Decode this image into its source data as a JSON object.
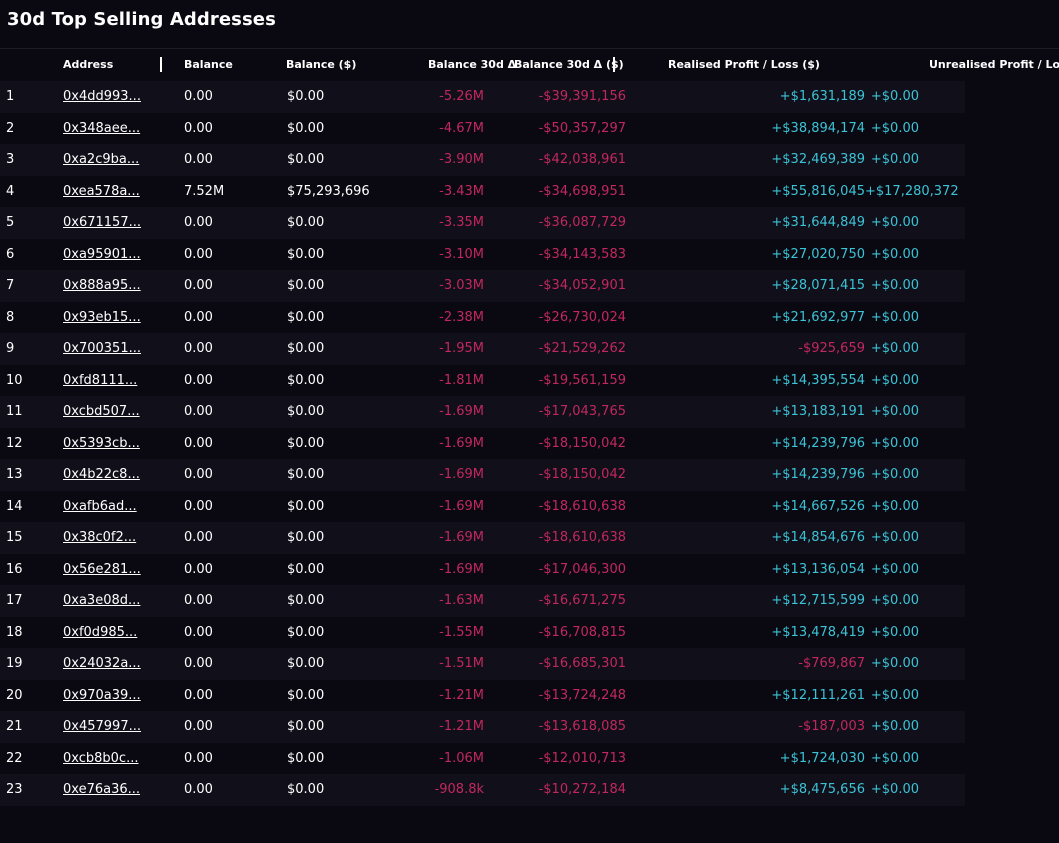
{
  "title": "30d Top Selling Addresses",
  "columns": {
    "address": "Address",
    "balance": "Balance",
    "balance_usd": "Balance ($)",
    "balance_30d": "Balance 30d Δ",
    "balance_30d_usd": "Balance 30d Δ ($)",
    "realised": "Realised Profit / Loss ($)",
    "unrealised": "Unrealised Profit / Loss ($)"
  },
  "colors": {
    "background": "#0a0912",
    "row_alt": "#100f1a",
    "negative": "#c2285f",
    "positive": "#3cc3d6"
  },
  "rows": [
    {
      "rank": "1",
      "address": "0x4dd993...",
      "balance": "0.00",
      "balance_usd": "$0.00",
      "balance_30d": "-5.26M",
      "balance_30d_usd": "-$39,391,156",
      "realised": "+$1,631,189",
      "unrealised": "+$0.00"
    },
    {
      "rank": "2",
      "address": "0x348aee...",
      "balance": "0.00",
      "balance_usd": "$0.00",
      "balance_30d": "-4.67M",
      "balance_30d_usd": "-$50,357,297",
      "realised": "+$38,894,174",
      "unrealised": "+$0.00"
    },
    {
      "rank": "3",
      "address": "0xa2c9ba...",
      "balance": "0.00",
      "balance_usd": "$0.00",
      "balance_30d": "-3.90M",
      "balance_30d_usd": "-$42,038,961",
      "realised": "+$32,469,389",
      "unrealised": "+$0.00"
    },
    {
      "rank": "4",
      "address": "0xea578a...",
      "balance": "7.52M",
      "balance_usd": "$75,293,696",
      "balance_30d": "-3.43M",
      "balance_30d_usd": "-$34,698,951",
      "realised": "+$55,816,045",
      "unrealised": "+$17,280,372"
    },
    {
      "rank": "5",
      "address": "0x671157...",
      "balance": "0.00",
      "balance_usd": "$0.00",
      "balance_30d": "-3.35M",
      "balance_30d_usd": "-$36,087,729",
      "realised": "+$31,644,849",
      "unrealised": "+$0.00"
    },
    {
      "rank": "6",
      "address": "0xa95901...",
      "balance": "0.00",
      "balance_usd": "$0.00",
      "balance_30d": "-3.10M",
      "balance_30d_usd": "-$34,143,583",
      "realised": "+$27,020,750",
      "unrealised": "+$0.00"
    },
    {
      "rank": "7",
      "address": "0x888a95...",
      "balance": "0.00",
      "balance_usd": "$0.00",
      "balance_30d": "-3.03M",
      "balance_30d_usd": "-$34,052,901",
      "realised": "+$28,071,415",
      "unrealised": "+$0.00"
    },
    {
      "rank": "8",
      "address": "0x93eb15...",
      "balance": "0.00",
      "balance_usd": "$0.00",
      "balance_30d": "-2.38M",
      "balance_30d_usd": "-$26,730,024",
      "realised": "+$21,692,977",
      "unrealised": "+$0.00"
    },
    {
      "rank": "9",
      "address": "0x700351...",
      "balance": "0.00",
      "balance_usd": "$0.00",
      "balance_30d": "-1.95M",
      "balance_30d_usd": "-$21,529,262",
      "realised": "-$925,659",
      "unrealised": "+$0.00"
    },
    {
      "rank": "10",
      "address": "0xfd8111...",
      "balance": "0.00",
      "balance_usd": "$0.00",
      "balance_30d": "-1.81M",
      "balance_30d_usd": "-$19,561,159",
      "realised": "+$14,395,554",
      "unrealised": "+$0.00"
    },
    {
      "rank": "11",
      "address": "0xcbd507...",
      "balance": "0.00",
      "balance_usd": "$0.00",
      "balance_30d": "-1.69M",
      "balance_30d_usd": "-$17,043,765",
      "realised": "+$13,183,191",
      "unrealised": "+$0.00"
    },
    {
      "rank": "12",
      "address": "0x5393cb...",
      "balance": "0.00",
      "balance_usd": "$0.00",
      "balance_30d": "-1.69M",
      "balance_30d_usd": "-$18,150,042",
      "realised": "+$14,239,796",
      "unrealised": "+$0.00"
    },
    {
      "rank": "13",
      "address": "0x4b22c8...",
      "balance": "0.00",
      "balance_usd": "$0.00",
      "balance_30d": "-1.69M",
      "balance_30d_usd": "-$18,150,042",
      "realised": "+$14,239,796",
      "unrealised": "+$0.00"
    },
    {
      "rank": "14",
      "address": "0xafb6ad...",
      "balance": "0.00",
      "balance_usd": "$0.00",
      "balance_30d": "-1.69M",
      "balance_30d_usd": "-$18,610,638",
      "realised": "+$14,667,526",
      "unrealised": "+$0.00"
    },
    {
      "rank": "15",
      "address": "0x38c0f2...",
      "balance": "0.00",
      "balance_usd": "$0.00",
      "balance_30d": "-1.69M",
      "balance_30d_usd": "-$18,610,638",
      "realised": "+$14,854,676",
      "unrealised": "+$0.00"
    },
    {
      "rank": "16",
      "address": "0x56e281...",
      "balance": "0.00",
      "balance_usd": "$0.00",
      "balance_30d": "-1.69M",
      "balance_30d_usd": "-$17,046,300",
      "realised": "+$13,136,054",
      "unrealised": "+$0.00"
    },
    {
      "rank": "17",
      "address": "0xa3e08d...",
      "balance": "0.00",
      "balance_usd": "$0.00",
      "balance_30d": "-1.63M",
      "balance_30d_usd": "-$16,671,275",
      "realised": "+$12,715,599",
      "unrealised": "+$0.00"
    },
    {
      "rank": "18",
      "address": "0xf0d985...",
      "balance": "0.00",
      "balance_usd": "$0.00",
      "balance_30d": "-1.55M",
      "balance_30d_usd": "-$16,708,815",
      "realised": "+$13,478,419",
      "unrealised": "+$0.00"
    },
    {
      "rank": "19",
      "address": "0x24032a...",
      "balance": "0.00",
      "balance_usd": "$0.00",
      "balance_30d": "-1.51M",
      "balance_30d_usd": "-$16,685,301",
      "realised": "-$769,867",
      "unrealised": "+$0.00"
    },
    {
      "rank": "20",
      "address": "0x970a39...",
      "balance": "0.00",
      "balance_usd": "$0.00",
      "balance_30d": "-1.21M",
      "balance_30d_usd": "-$13,724,248",
      "realised": "+$12,111,261",
      "unrealised": "+$0.00"
    },
    {
      "rank": "21",
      "address": "0x457997...",
      "balance": "0.00",
      "balance_usd": "$0.00",
      "balance_30d": "-1.21M",
      "balance_30d_usd": "-$13,618,085",
      "realised": "-$187,003",
      "unrealised": "+$0.00"
    },
    {
      "rank": "22",
      "address": "0xcb8b0c...",
      "balance": "0.00",
      "balance_usd": "$0.00",
      "balance_30d": "-1.06M",
      "balance_30d_usd": "-$12,010,713",
      "realised": "+$1,724,030",
      "unrealised": "+$0.00"
    },
    {
      "rank": "23",
      "address": "0xe76a36...",
      "balance": "0.00",
      "balance_usd": "$0.00",
      "balance_30d": "-908.8k",
      "balance_30d_usd": "-$10,272,184",
      "realised": "+$8,475,656",
      "unrealised": "+$0.00"
    }
  ]
}
